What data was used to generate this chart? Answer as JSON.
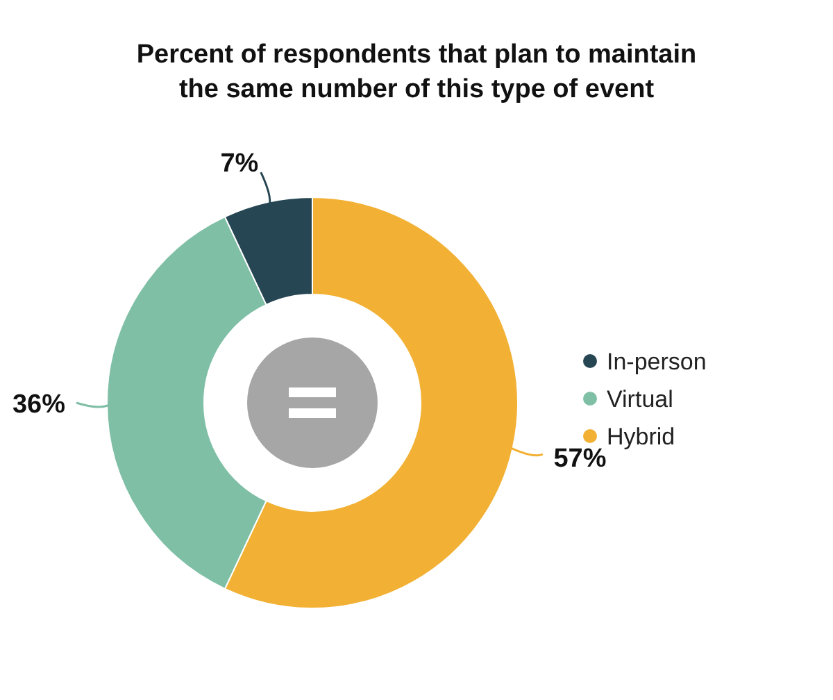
{
  "chart_data": {
    "type": "donut",
    "title": "Percent of respondents that plan to maintain the same number of this type of event",
    "categories": [
      "Hybrid",
      "Virtual",
      "In-person"
    ],
    "values": [
      57,
      36,
      7
    ],
    "colors": [
      "#f2b134",
      "#7fbfa5",
      "#264653"
    ],
    "value_labels": [
      "57%",
      "36%",
      "7%"
    ],
    "legend": "right"
  }
}
